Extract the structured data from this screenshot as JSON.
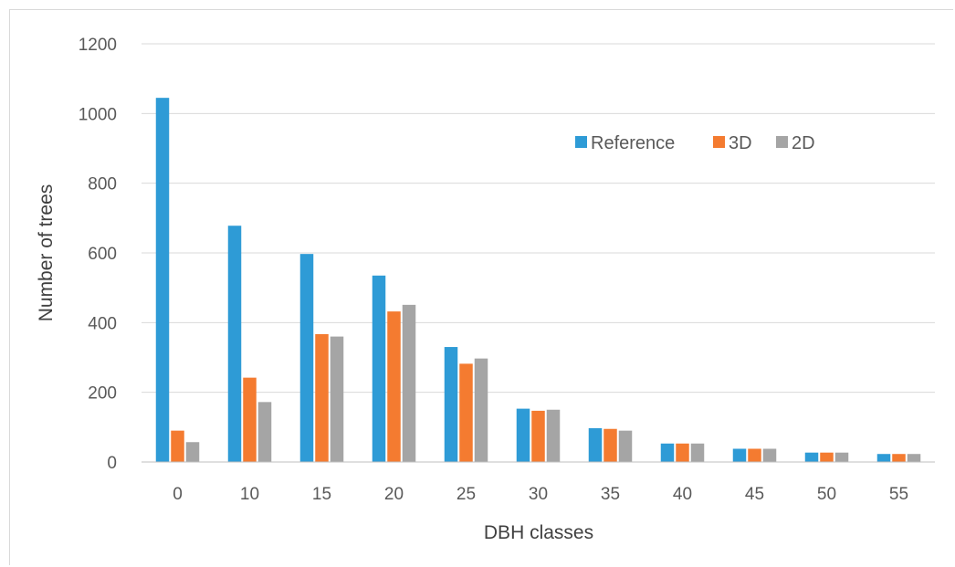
{
  "chart_data": {
    "type": "bar",
    "title": "",
    "xlabel": "DBH classes",
    "ylabel": "Number of trees",
    "categories": [
      "0",
      "10",
      "15",
      "20",
      "25",
      "30",
      "35",
      "40",
      "45",
      "50",
      "55"
    ],
    "ylim": [
      0,
      1200
    ],
    "yticks": [
      0,
      200,
      400,
      600,
      800,
      1000,
      1200
    ],
    "grid": true,
    "legend_position": "top-right",
    "series": [
      {
        "name": "Reference",
        "color": "#2e9bd6",
        "values": [
          1045,
          678,
          597,
          535,
          330,
          153,
          97,
          53,
          38,
          27,
          23
        ]
      },
      {
        "name": "3D",
        "color": "#f47b30",
        "values": [
          90,
          242,
          367,
          432,
          282,
          147,
          95,
          53,
          38,
          27,
          23
        ]
      },
      {
        "name": "2D",
        "color": "#a5a5a5",
        "values": [
          57,
          172,
          360,
          451,
          297,
          150,
          90,
          53,
          38,
          27,
          23
        ]
      }
    ]
  }
}
